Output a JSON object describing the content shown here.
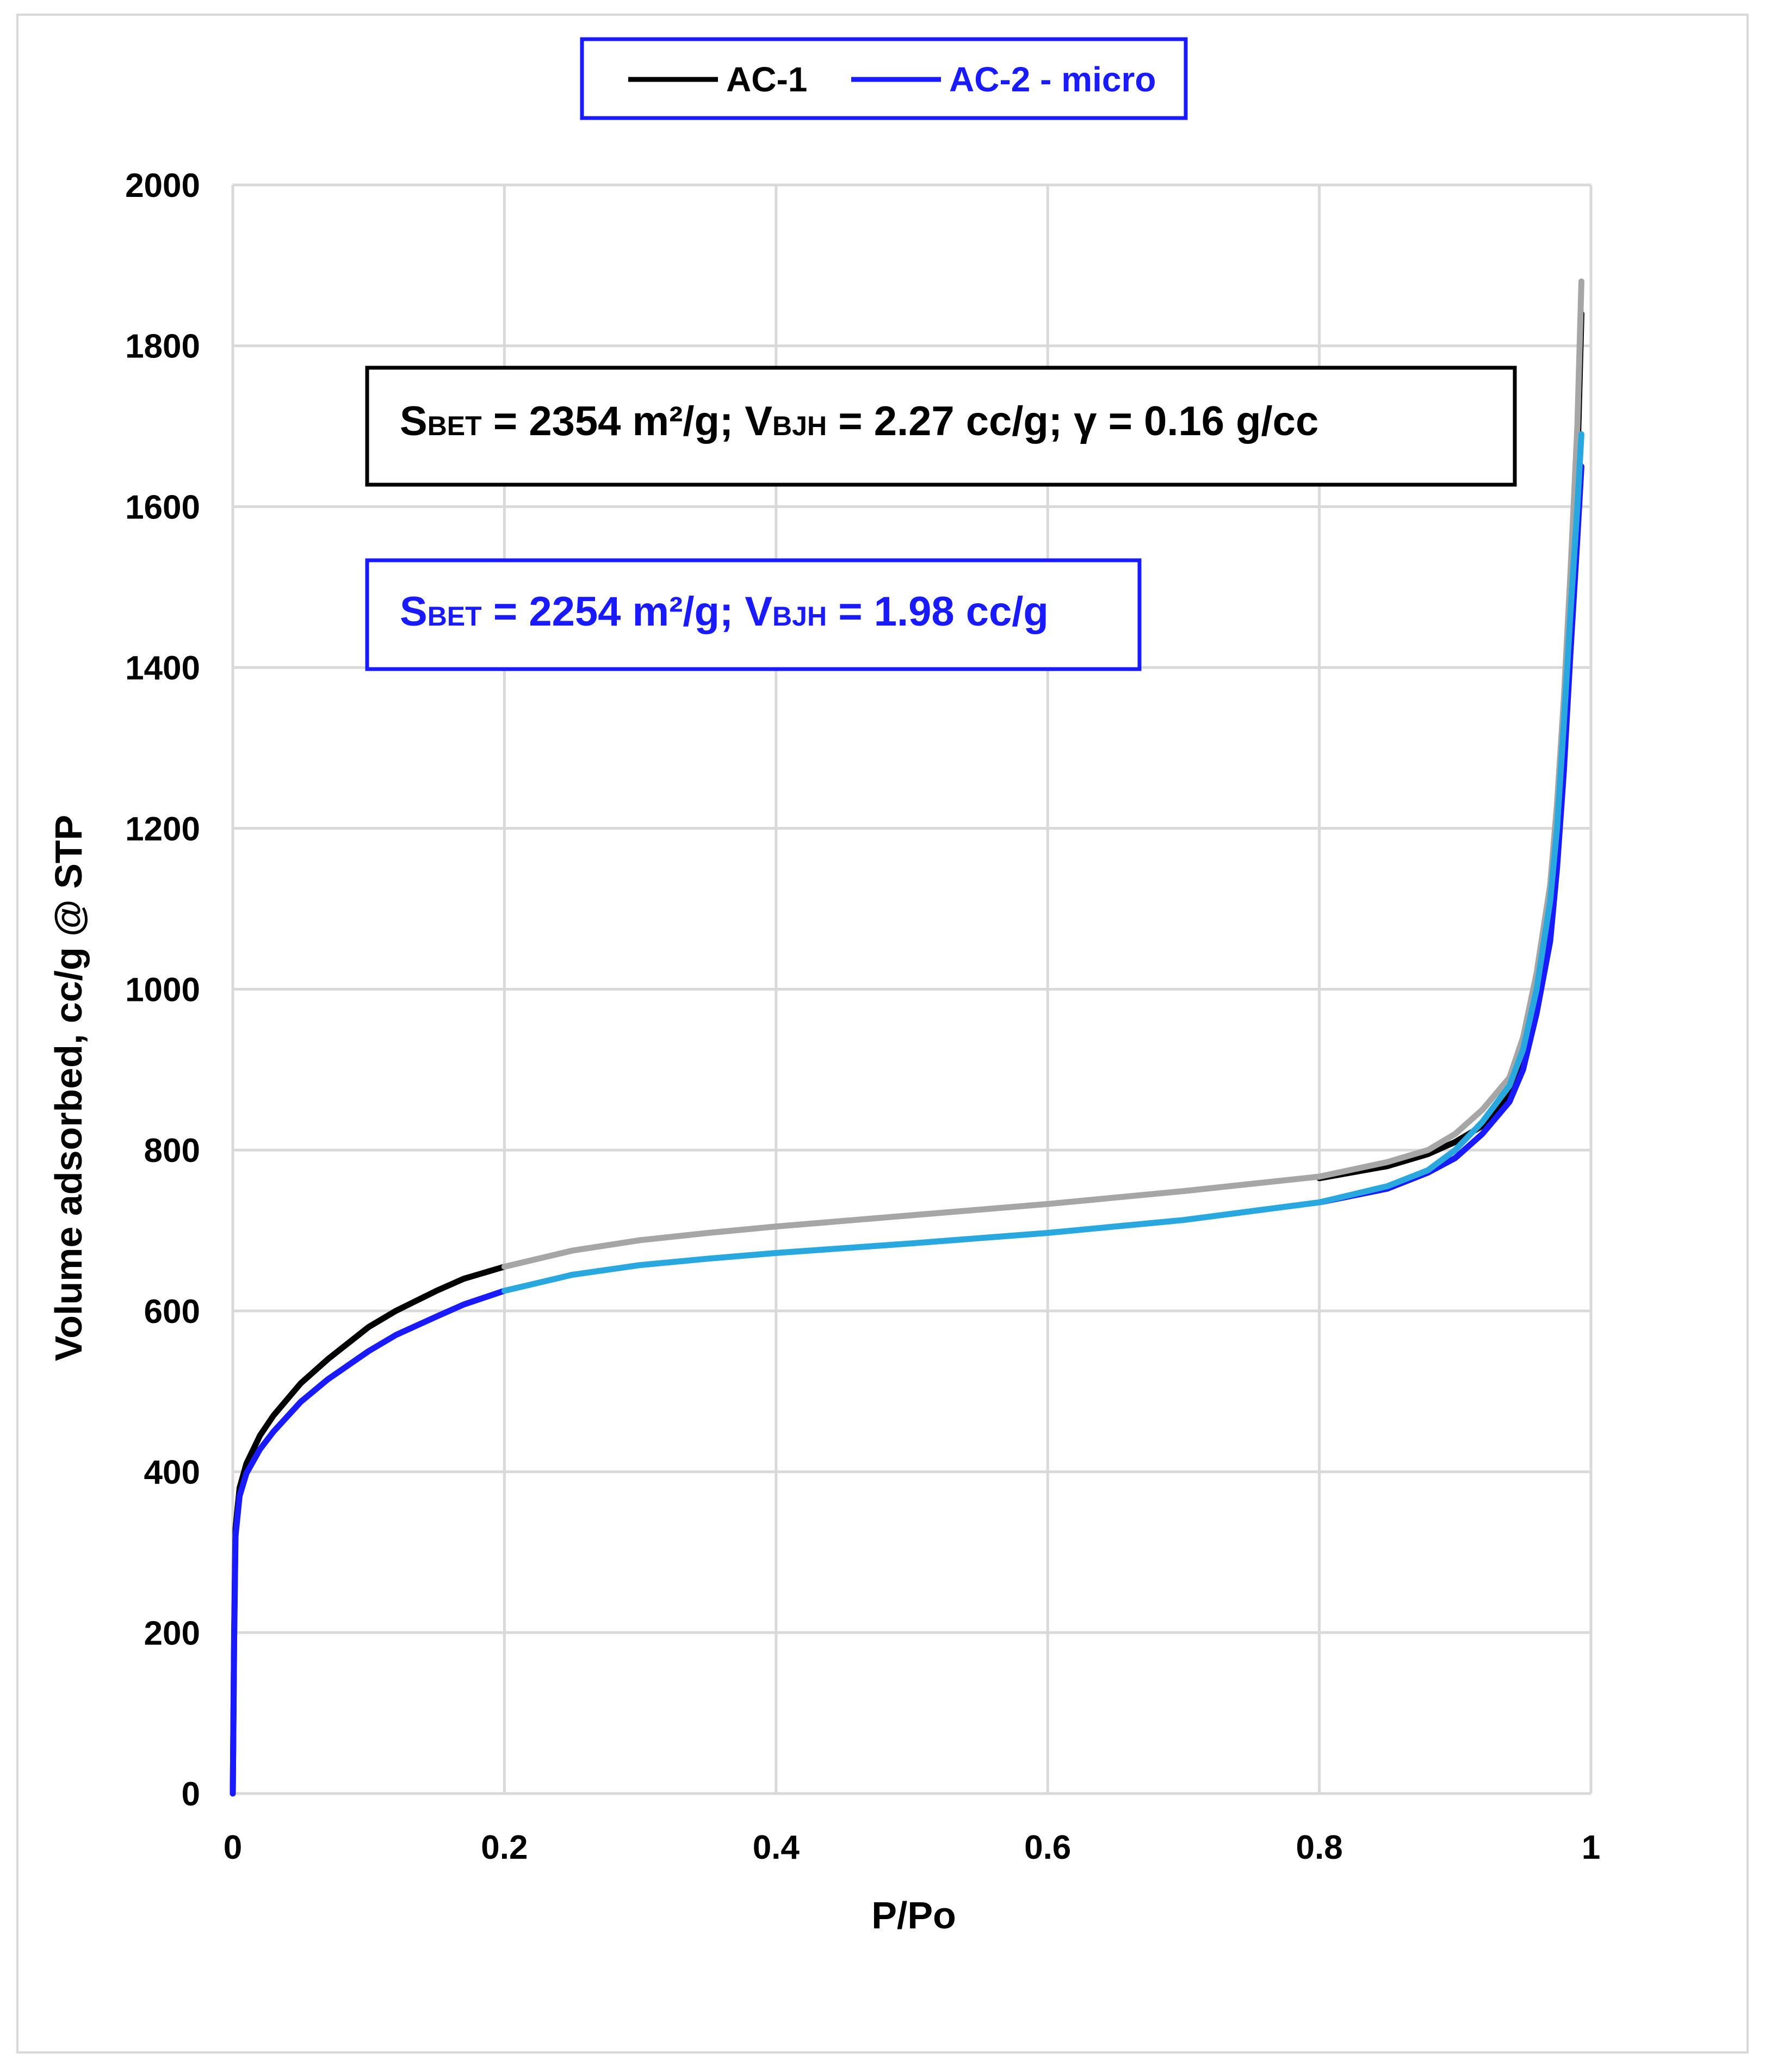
{
  "chart_data": {
    "type": "line",
    "xlabel": "P/Po",
    "ylabel": "Volume adsorbed, cc/g @ STP",
    "xlim": [
      0,
      1
    ],
    "ylim": [
      0,
      2000
    ],
    "xticks": [
      "0",
      "0.2",
      "0.4",
      "0.6",
      "0.8",
      "1"
    ],
    "yticks": [
      "0",
      "200",
      "400",
      "600",
      "800",
      "1000",
      "1200",
      "1400",
      "1600",
      "1800",
      "2000"
    ],
    "grid": true,
    "legend": {
      "position": "top-center",
      "entries": [
        {
          "label": "AC-1",
          "color": "#000000"
        },
        {
          "label": "AC-2 - micro",
          "color": "#1a1aff"
        }
      ]
    },
    "annotations": [
      {
        "id": "ac1",
        "color": "#000000",
        "border": "#000000",
        "parts": [
          {
            "text": "S",
            "sub": false
          },
          {
            "text": "BET",
            "sub": true
          },
          {
            "text": " = 2354 m²/g; V",
            "sub": false
          },
          {
            "text": "BJH",
            "sub": true
          },
          {
            "text": " = 2.27 cc/g; γ = 0.16 g/cc",
            "sub": false
          }
        ]
      },
      {
        "id": "ac2",
        "color": "#1a1aff",
        "border": "#1a1aff",
        "parts": [
          {
            "text": "S",
            "sub": false
          },
          {
            "text": "BET",
            "sub": true
          },
          {
            "text": " = 2254 m²/g; V",
            "sub": false
          },
          {
            "text": "BJH",
            "sub": true
          },
          {
            "text": " = 1.98 cc/g",
            "sub": false
          }
        ]
      }
    ],
    "series": [
      {
        "name": "AC-1",
        "branch": "adsorption",
        "color": "#000000",
        "x": [
          0,
          0.001,
          0.002,
          0.005,
          0.01,
          0.02,
          0.03,
          0.05,
          0.07,
          0.1,
          0.12,
          0.15,
          0.17,
          0.2
        ],
        "y": [
          0,
          200,
          330,
          380,
          410,
          445,
          470,
          510,
          540,
          580,
          600,
          625,
          640,
          655
        ]
      },
      {
        "name": "AC-1",
        "branch": "adsorption-high",
        "color": "#000000",
        "x": [
          0.8,
          0.85,
          0.88,
          0.9,
          0.92,
          0.94,
          0.95,
          0.96,
          0.97,
          0.975,
          0.98,
          0.985,
          0.99,
          0.993
        ],
        "y": [
          765,
          780,
          795,
          810,
          830,
          870,
          920,
          990,
          1080,
          1170,
          1280,
          1450,
          1650,
          1840
        ]
      },
      {
        "name": "AC-1",
        "branch": "desorption",
        "color": "#a6a6a6",
        "x": [
          0.2,
          0.25,
          0.3,
          0.35,
          0.4,
          0.5,
          0.6,
          0.7,
          0.8,
          0.85,
          0.88,
          0.9,
          0.92,
          0.94,
          0.95,
          0.96,
          0.97,
          0.975,
          0.98,
          0.985,
          0.99,
          0.993
        ],
        "y": [
          655,
          675,
          688,
          697,
          705,
          719,
          733,
          749,
          767,
          785,
          800,
          820,
          850,
          890,
          940,
          1020,
          1130,
          1230,
          1360,
          1520,
          1700,
          1880
        ]
      },
      {
        "name": "AC-2 - micro",
        "branch": "adsorption",
        "color": "#1a1aff",
        "x": [
          0,
          0.001,
          0.002,
          0.005,
          0.01,
          0.02,
          0.03,
          0.05,
          0.07,
          0.1,
          0.12,
          0.15,
          0.17,
          0.2
        ],
        "y": [
          0,
          190,
          320,
          370,
          398,
          428,
          450,
          487,
          515,
          550,
          570,
          593,
          608,
          625
        ]
      },
      {
        "name": "AC-2 - micro",
        "branch": "adsorption-high",
        "color": "#1a1aff",
        "x": [
          0.8,
          0.85,
          0.88,
          0.9,
          0.92,
          0.94,
          0.95,
          0.96,
          0.97,
          0.975,
          0.98,
          0.985,
          0.99,
          0.993
        ],
        "y": [
          735,
          752,
          772,
          790,
          820,
          860,
          900,
          970,
          1060,
          1150,
          1270,
          1420,
          1560,
          1650
        ]
      },
      {
        "name": "AC-2 - micro",
        "branch": "desorption",
        "color": "#29a8e0",
        "x": [
          0.2,
          0.25,
          0.3,
          0.35,
          0.4,
          0.5,
          0.6,
          0.7,
          0.8,
          0.85,
          0.88,
          0.9,
          0.92,
          0.94,
          0.95,
          0.96,
          0.97,
          0.975,
          0.98,
          0.985,
          0.99,
          0.993
        ],
        "y": [
          625,
          645,
          657,
          665,
          672,
          684,
          697,
          713,
          735,
          755,
          775,
          800,
          835,
          880,
          925,
          1000,
          1110,
          1200,
          1330,
          1470,
          1600,
          1690
        ]
      }
    ]
  }
}
